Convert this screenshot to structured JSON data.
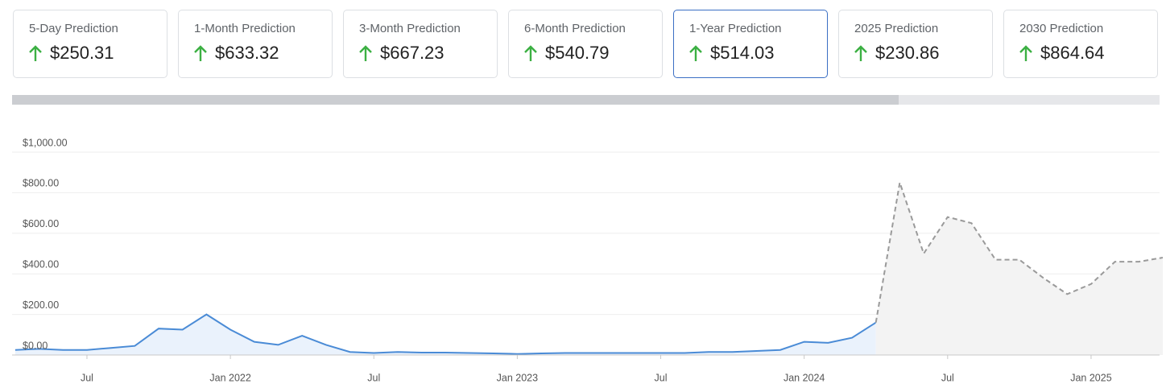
{
  "cards": {
    "items": [
      {
        "label": "5-Day Prediction",
        "value": "$250.31"
      },
      {
        "label": "1-Month Prediction",
        "value": "$633.32"
      },
      {
        "label": "3-Month Prediction",
        "value": "$667.23"
      },
      {
        "label": "6-Month Prediction",
        "value": "$540.79"
      },
      {
        "label": "1-Year Prediction",
        "value": "$514.03"
      },
      {
        "label": "2025 Prediction",
        "value": "$230.86"
      },
      {
        "label": "2030 Prediction",
        "value": "$864.64"
      }
    ],
    "selected": 4
  },
  "chart_data": {
    "type": "line",
    "x": [
      "2021-04",
      "2021-05",
      "2021-06",
      "2021-07",
      "2021-08",
      "2021-09",
      "2021-10",
      "2021-11",
      "2021-12",
      "2022-01",
      "2022-02",
      "2022-03",
      "2022-04",
      "2022-05",
      "2022-06",
      "2022-07",
      "2022-08",
      "2022-09",
      "2022-10",
      "2022-11",
      "2022-12",
      "2023-01",
      "2023-02",
      "2023-03",
      "2023-04",
      "2023-05",
      "2023-06",
      "2023-07",
      "2023-08",
      "2023-09",
      "2023-10",
      "2023-11",
      "2023-12",
      "2024-01",
      "2024-02",
      "2024-03",
      "2024-04",
      "2024-05",
      "2024-06",
      "2024-07",
      "2024-08",
      "2024-09",
      "2024-10",
      "2024-11",
      "2024-12",
      "2025-01",
      "2025-02",
      "2025-03",
      "2025-04"
    ],
    "series": [
      {
        "color": "#4a8bd6",
        "fill": "#eaf2fc",
        "dashed": false,
        "values": [
          25,
          30,
          25,
          25,
          35,
          45,
          130,
          125,
          200,
          125,
          65,
          50,
          95,
          50,
          15,
          10,
          15,
          12,
          12,
          10,
          8,
          5,
          8,
          10,
          10,
          10,
          10,
          10,
          10,
          15,
          15,
          20,
          25,
          65,
          60,
          85,
          160,
          null,
          null,
          null,
          null,
          null,
          null,
          null,
          null,
          null,
          null,
          null,
          null
        ]
      },
      {
        "color": "#9a9a9a",
        "fill": "#f3f3f3",
        "dashed": true,
        "values": [
          null,
          null,
          null,
          null,
          null,
          null,
          null,
          null,
          null,
          null,
          null,
          null,
          null,
          null,
          null,
          null,
          null,
          null,
          null,
          null,
          null,
          null,
          null,
          null,
          null,
          null,
          null,
          null,
          null,
          null,
          null,
          null,
          null,
          null,
          null,
          null,
          160,
          850,
          500,
          680,
          650,
          470,
          470,
          380,
          300,
          350,
          460,
          460,
          480
        ]
      }
    ],
    "ylim": [
      0,
      1000
    ],
    "yticks": [
      {
        "value": 0,
        "label": "$0.00"
      },
      {
        "value": 200,
        "label": "$200.00"
      },
      {
        "value": 400,
        "label": "$400.00"
      },
      {
        "value": 600,
        "label": "$600.00"
      },
      {
        "value": 800,
        "label": "$800.00"
      },
      {
        "value": 1000,
        "label": "$1,000.00"
      }
    ],
    "xticks": [
      {
        "value": "2021-07",
        "label": "Jul"
      },
      {
        "value": "2022-01",
        "label": "Jan 2022"
      },
      {
        "value": "2022-07",
        "label": "Jul"
      },
      {
        "value": "2023-01",
        "label": "Jan 2023"
      },
      {
        "value": "2023-07",
        "label": "Jul"
      },
      {
        "value": "2024-01",
        "label": "Jan 2024"
      },
      {
        "value": "2024-07",
        "label": "Jul"
      },
      {
        "value": "2025-01",
        "label": "Jan 2025"
      }
    ],
    "grid": true
  }
}
